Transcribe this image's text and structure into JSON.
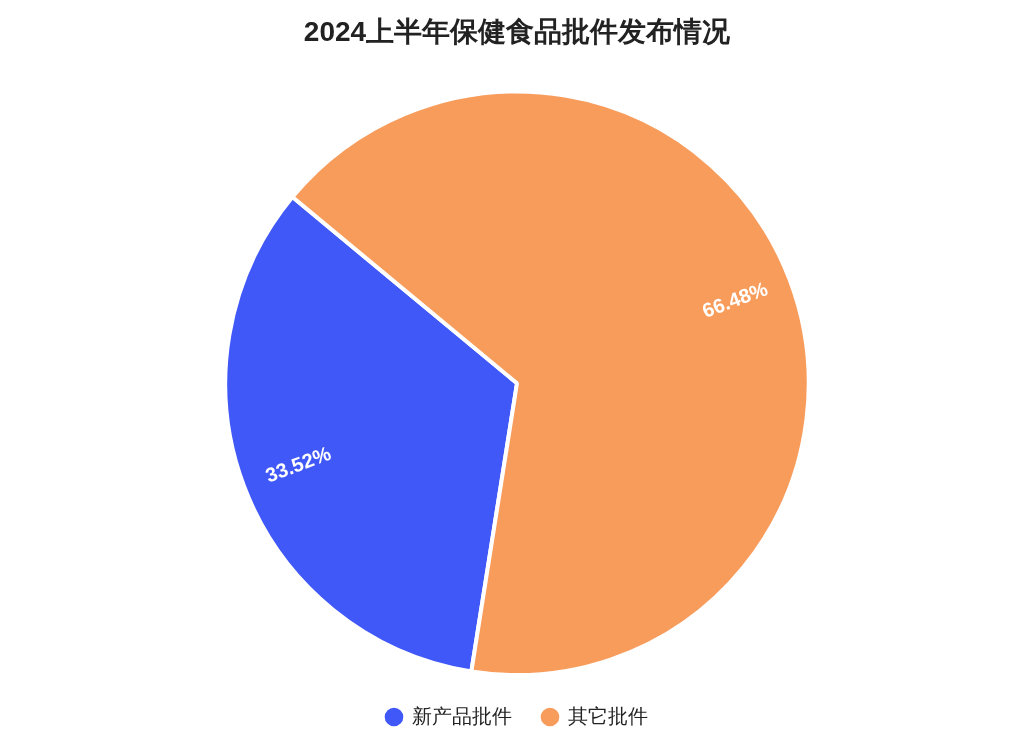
{
  "chart_data": {
    "type": "pie",
    "title": "2024上半年保健食品批件发布情况",
    "categories": [
      "新产品批件",
      "其它批件"
    ],
    "values": [
      33.52,
      66.48
    ],
    "colors": [
      "#4058f8",
      "#f89c5c"
    ],
    "value_labels": [
      "33.52%",
      "66.48%"
    ],
    "legend": "bottom"
  }
}
